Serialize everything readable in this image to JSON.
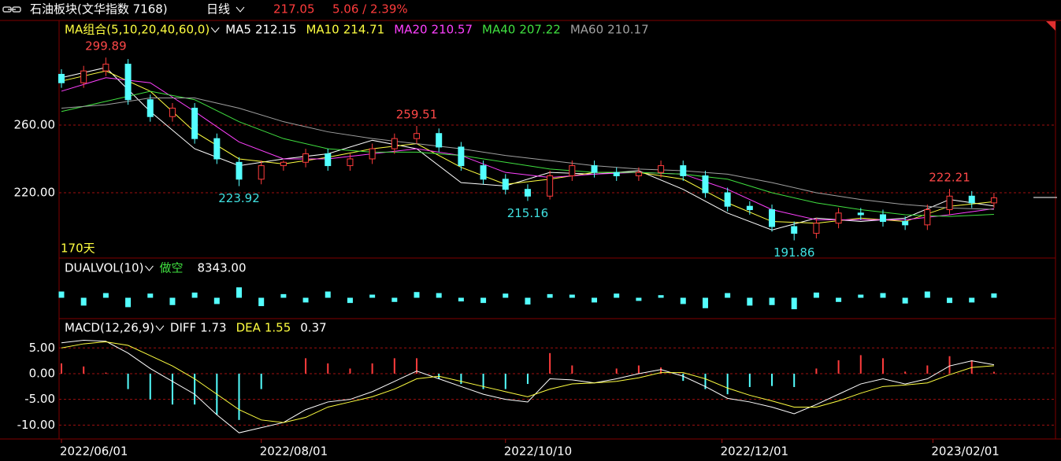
{
  "header": {
    "title": "石油板块(文华指数 7168)",
    "period": "日线",
    "price": 217.05,
    "change": "5.06 / 2.39%"
  },
  "chart_data": [
    {
      "type": "candlestick",
      "title": "MA组合(5,10,20,40,60,0)",
      "span_label": "170天",
      "x": [
        0,
        4,
        8,
        12,
        16,
        20,
        24,
        28,
        32,
        36,
        40,
        44,
        48,
        52,
        56,
        60,
        64,
        68,
        72,
        76,
        80,
        84,
        88,
        92,
        96,
        100,
        104,
        108,
        112,
        116,
        120,
        124,
        128,
        132,
        136,
        140,
        144,
        148,
        152,
        156,
        160,
        164,
        168
      ],
      "open": [
        290,
        285,
        292,
        296,
        275,
        265,
        270,
        252,
        238,
        228,
        236,
        238,
        243,
        236,
        240,
        246,
        252,
        255,
        247,
        236,
        228,
        222,
        218,
        230,
        236,
        232,
        230,
        232,
        236,
        230,
        220,
        212,
        210,
        200,
        196,
        202,
        208,
        207,
        203,
        201,
        210,
        218,
        214
      ],
      "high": [
        293,
        295,
        299.89,
        299,
        278,
        273,
        273,
        255,
        241,
        239,
        239,
        246,
        246,
        243,
        249,
        255,
        259.51,
        258,
        250,
        239,
        231,
        225,
        233,
        239,
        239,
        235,
        235,
        239,
        239,
        233,
        223,
        215,
        213,
        203,
        205,
        211,
        211,
        210,
        206,
        213,
        222.21,
        221,
        220
      ],
      "low": [
        282,
        282,
        289,
        272,
        262,
        262,
        249,
        237,
        223.92,
        225,
        233,
        235,
        233,
        233,
        237,
        243,
        249,
        244,
        233,
        225,
        219,
        215.16,
        216,
        227,
        229,
        227,
        227,
        229,
        227,
        217,
        209,
        207,
        197,
        191.86,
        193,
        199,
        204,
        200,
        198,
        198,
        207,
        211,
        211
      ],
      "close": [
        285,
        292,
        296,
        275,
        265,
        270,
        252,
        240,
        228,
        236,
        238,
        243,
        236,
        240,
        246,
        252,
        255,
        247,
        236,
        228,
        222,
        218,
        230,
        236,
        232,
        230,
        232,
        236,
        230,
        220,
        212,
        210,
        200,
        196,
        202,
        208,
        207,
        203,
        201,
        210,
        218,
        214,
        217
      ],
      "up_color": "#ff3c3c",
      "down_color": "#54ffff",
      "ma": {
        "x": [
          0,
          8,
          16,
          24,
          32,
          40,
          48,
          56,
          64,
          72,
          80,
          88,
          96,
          104,
          112,
          120,
          128,
          136,
          144,
          152,
          160,
          168
        ],
        "series": [
          {
            "name": "MA5",
            "color": "#ffffff",
            "values": [
              288,
              294,
              268,
              246,
              236,
              240,
              243,
              251,
              246,
              226,
              224,
              232,
              231,
              233,
              222,
              208,
              198,
              205,
              203,
              205,
              216,
              212.15
            ]
          },
          {
            "name": "MA10",
            "color": "#ffff40",
            "values": [
              286,
              292,
              280,
              256,
              240,
              237,
              241,
              246,
              249,
              235,
              225,
              228,
              232,
              232,
              228,
              214,
              203,
              202,
              205,
              203,
              212,
              214.71
            ]
          },
          {
            "name": "MA20",
            "color": "#ff40ff",
            "values": [
              280,
              288,
              285,
              268,
              250,
              240,
              240,
              243,
              246,
              242,
              232,
              229,
              231,
              232,
              231,
              222,
              210,
              204,
              204,
              204,
              207,
              210.57
            ]
          },
          {
            "name": "MA40",
            "color": "#40e040",
            "values": [
              268,
              274,
              280,
              275,
              262,
              252,
              246,
              244,
              244,
              242,
              238,
              234,
              232,
              232,
              231,
              228,
              220,
              214,
              210,
              207,
              206,
              207.22
            ]
          },
          {
            "name": "MA60",
            "color": "#a0a0a0",
            "values": [
              270,
              272,
              276,
              276,
              270,
              262,
              256,
              252,
              249,
              246,
              242,
              239,
              236,
              234,
              233,
              231,
              226,
              220,
              216,
              213,
              211,
              210.17
            ]
          }
        ]
      },
      "highs": [
        {
          "x": 8,
          "value": 299.89
        },
        {
          "x": 64,
          "value": 259.51
        },
        {
          "x": 160,
          "value": 222.21
        }
      ],
      "lows": [
        {
          "x": 32,
          "value": 223.92
        },
        {
          "x": 84,
          "value": 215.16
        },
        {
          "x": 132,
          "value": 191.86
        }
      ],
      "xlim": [
        0,
        170
      ],
      "ylim": [
        181.4,
        320.9
      ],
      "yticks": [
        {
          "value": 260,
          "label": "260.00"
        },
        {
          "value": 220,
          "label": "220.00"
        }
      ],
      "grid": true
    },
    {
      "type": "bar",
      "title": "DUALVOL(10)",
      "signal": "做空",
      "color": "#54ffff",
      "x": [
        0,
        4,
        8,
        12,
        16,
        20,
        24,
        28,
        32,
        36,
        40,
        44,
        48,
        52,
        56,
        60,
        64,
        68,
        72,
        76,
        80,
        84,
        88,
        92,
        96,
        100,
        104,
        108,
        112,
        116,
        120,
        124,
        128,
        132,
        136,
        140,
        144,
        148,
        152,
        156,
        160,
        164,
        168
      ],
      "values": [
        12000,
        -15000,
        9000,
        -18000,
        8000,
        -14000,
        10000,
        -12000,
        20000,
        -16000,
        7000,
        -9000,
        12000,
        -10000,
        6000,
        -8000,
        11000,
        9000,
        -7000,
        -10000,
        8000,
        -13000,
        7000,
        6000,
        -9000,
        8000,
        -6000,
        5000,
        -12000,
        -20000,
        9000,
        -15000,
        -14000,
        -22000,
        10000,
        -8000,
        6000,
        9000,
        -11000,
        12000,
        -10000,
        -9000,
        8343
      ],
      "value_labels": [
        null,
        null,
        null,
        null,
        null,
        null,
        null,
        null,
        null,
        null,
        null,
        null,
        null,
        null,
        null,
        null,
        null,
        null,
        null,
        null,
        null,
        null,
        null,
        null,
        null,
        null,
        null,
        null,
        null,
        null,
        null,
        null,
        null,
        null,
        null,
        null,
        null,
        null,
        null,
        null,
        null,
        null,
        "8343.00"
      ],
      "xlim": [
        0,
        170
      ],
      "ylim": [
        -40000,
        40000
      ]
    },
    {
      "type": "macd",
      "title": "MACD(12,26,9)",
      "x": [
        0,
        4,
        8,
        12,
        16,
        20,
        24,
        28,
        32,
        36,
        40,
        44,
        48,
        52,
        56,
        60,
        64,
        68,
        72,
        76,
        80,
        84,
        88,
        92,
        96,
        100,
        104,
        108,
        112,
        116,
        120,
        124,
        128,
        132,
        136,
        140,
        144,
        148,
        152,
        156,
        160,
        164,
        168
      ],
      "series": [
        {
          "name": "DIFF",
          "color": "#ffffff",
          "values": [
            6.0,
            6.5,
            6.3,
            4.0,
            1.0,
            -1.5,
            -4.0,
            -8.0,
            -11.5,
            -10.5,
            -9.5,
            -7.0,
            -5.5,
            -5.0,
            -3.5,
            -1.5,
            0.5,
            -1.0,
            -2.5,
            -4.0,
            -5.0,
            -5.5,
            -1.0,
            -1.2,
            -1.8,
            -1.0,
            0.0,
            0.8,
            -0.5,
            -2.5,
            -4.8,
            -5.5,
            -6.5,
            -7.8,
            -6.0,
            -4.0,
            -2.0,
            -1.0,
            -2.0,
            -1.0,
            1.5,
            2.5,
            1.73
          ]
        },
        {
          "name": "DEA",
          "color": "#ffff40",
          "values": [
            5.0,
            5.8,
            6.2,
            5.5,
            3.5,
            1.5,
            -1.0,
            -4.0,
            -7.0,
            -9.0,
            -9.5,
            -8.5,
            -6.5,
            -5.5,
            -4.5,
            -3.0,
            -1.0,
            -0.5,
            -1.5,
            -2.5,
            -3.5,
            -4.5,
            -3.0,
            -2.0,
            -1.8,
            -1.5,
            -0.8,
            0.2,
            0.2,
            -1.0,
            -2.8,
            -4.2,
            -5.3,
            -6.5,
            -6.5,
            -5.3,
            -3.8,
            -2.5,
            -2.2,
            -1.8,
            -0.2,
            1.2,
            1.55
          ]
        }
      ],
      "histogram": {
        "up_color": "#ff3c3c",
        "down_color": "#54ffff",
        "values": [
          2.0,
          1.4,
          0.2,
          -3.0,
          -5.0,
          -6.0,
          -6.0,
          -8.0,
          -9.0,
          -3.0,
          0.0,
          3.0,
          2.0,
          1.0,
          2.0,
          3.0,
          3.0,
          -1.0,
          -2.0,
          -3.0,
          -3.0,
          -2.0,
          4.0,
          1.6,
          0.0,
          1.0,
          1.6,
          1.2,
          -1.4,
          -3.0,
          -4.0,
          -2.6,
          -2.4,
          -2.6,
          1.0,
          2.6,
          3.6,
          3.0,
          0.4,
          1.6,
          3.4,
          2.6,
          0.37
        ]
      },
      "xlim": [
        0,
        170
      ],
      "ylim": [
        -12.7,
        10.4
      ],
      "yticks": [
        {
          "value": 5,
          "label": "5.00"
        },
        {
          "value": 0,
          "label": "0.00"
        },
        {
          "value": -5,
          "label": "-5.00"
        },
        {
          "value": -10,
          "label": "-10.00"
        }
      ],
      "xticks": [
        {
          "value": 0,
          "label": "2022/06/01"
        },
        {
          "value": 36,
          "label": "2022/08/01"
        },
        {
          "value": 80,
          "label": "2022/10/10"
        },
        {
          "value": 119,
          "label": "2022/12/01"
        },
        {
          "value": 157,
          "label": "2023/02/01"
        }
      ],
      "grid": true
    }
  ]
}
